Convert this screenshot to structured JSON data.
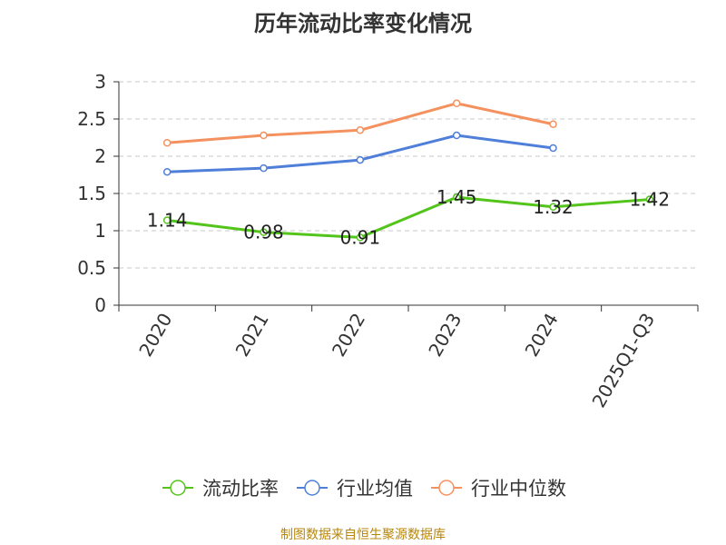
{
  "title": "历年流动比率变化情况",
  "source": "制图数据来自恒生聚源数据库",
  "chart_data": {
    "type": "line",
    "categories": [
      "2020",
      "2021",
      "2022",
      "2023",
      "2024",
      "2025Q1-Q3"
    ],
    "ylim": [
      0,
      3
    ],
    "yticks": [
      "0",
      "0.5",
      "1",
      "1.5",
      "2",
      "2.5",
      "3"
    ],
    "grid": true,
    "legend_position": "bottom",
    "series": [
      {
        "name": "流动比率",
        "color": "#52c41a",
        "values": [
          1.14,
          0.98,
          0.91,
          1.45,
          1.32,
          1.42
        ],
        "labels": [
          "1.14",
          "0.98",
          "0.91",
          "1.45",
          "1.32",
          "1.42"
        ]
      },
      {
        "name": "行业均值",
        "color": "#4f7fd8",
        "values": [
          1.79,
          1.84,
          1.95,
          2.28,
          2.11,
          null
        ]
      },
      {
        "name": "行业中位数",
        "color": "#f5915e",
        "values": [
          2.18,
          2.28,
          2.35,
          2.71,
          2.43,
          null
        ]
      }
    ]
  }
}
